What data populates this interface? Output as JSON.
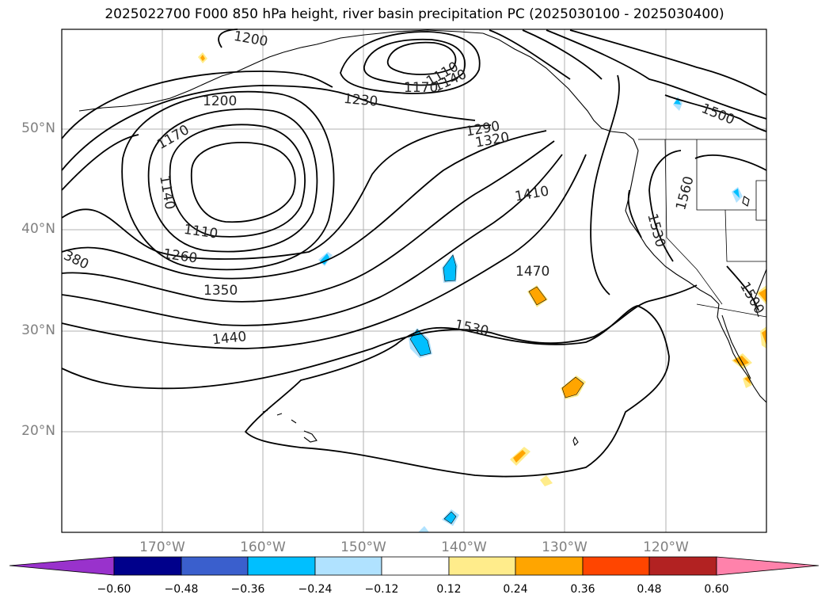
{
  "title": "2025022700 F000 850 hPa height, river basin precipitation PC (2025030100 - 2025030400)",
  "lat_labels": [
    "50°N",
    "40°N",
    "30°N",
    "20°N"
  ],
  "lon_labels": [
    "170°W",
    "160°W",
    "150°W",
    "140°W",
    "130°W",
    "120°W"
  ],
  "contour_labels": [
    "1200",
    "1200",
    "1170",
    "1140",
    "1110",
    "1260",
    "1350",
    "1440",
    "380",
    "1230",
    "1110",
    "1140",
    "1170",
    "1290",
    "1320",
    "1410",
    "1470",
    "1530",
    "1500",
    "1560",
    "1530",
    "1500"
  ],
  "colorbar": {
    "ticks": [
      "−0.60",
      "−0.48",
      "−0.36",
      "−0.24",
      "−0.12",
      "0.12",
      "0.24",
      "0.36",
      "0.48",
      "0.60"
    ],
    "colors": [
      "#9932cc",
      "#00008b",
      "#3a5fcd",
      "#00bfff",
      "#b0e2ff",
      "#ffffff",
      "#ffec8b",
      "#ffa500",
      "#ff4500",
      "#b22222",
      "#ff82ab"
    ]
  },
  "colors": {
    "contour": "#000000",
    "grid": "#b0b0b0",
    "axis_label": "#808080"
  }
}
